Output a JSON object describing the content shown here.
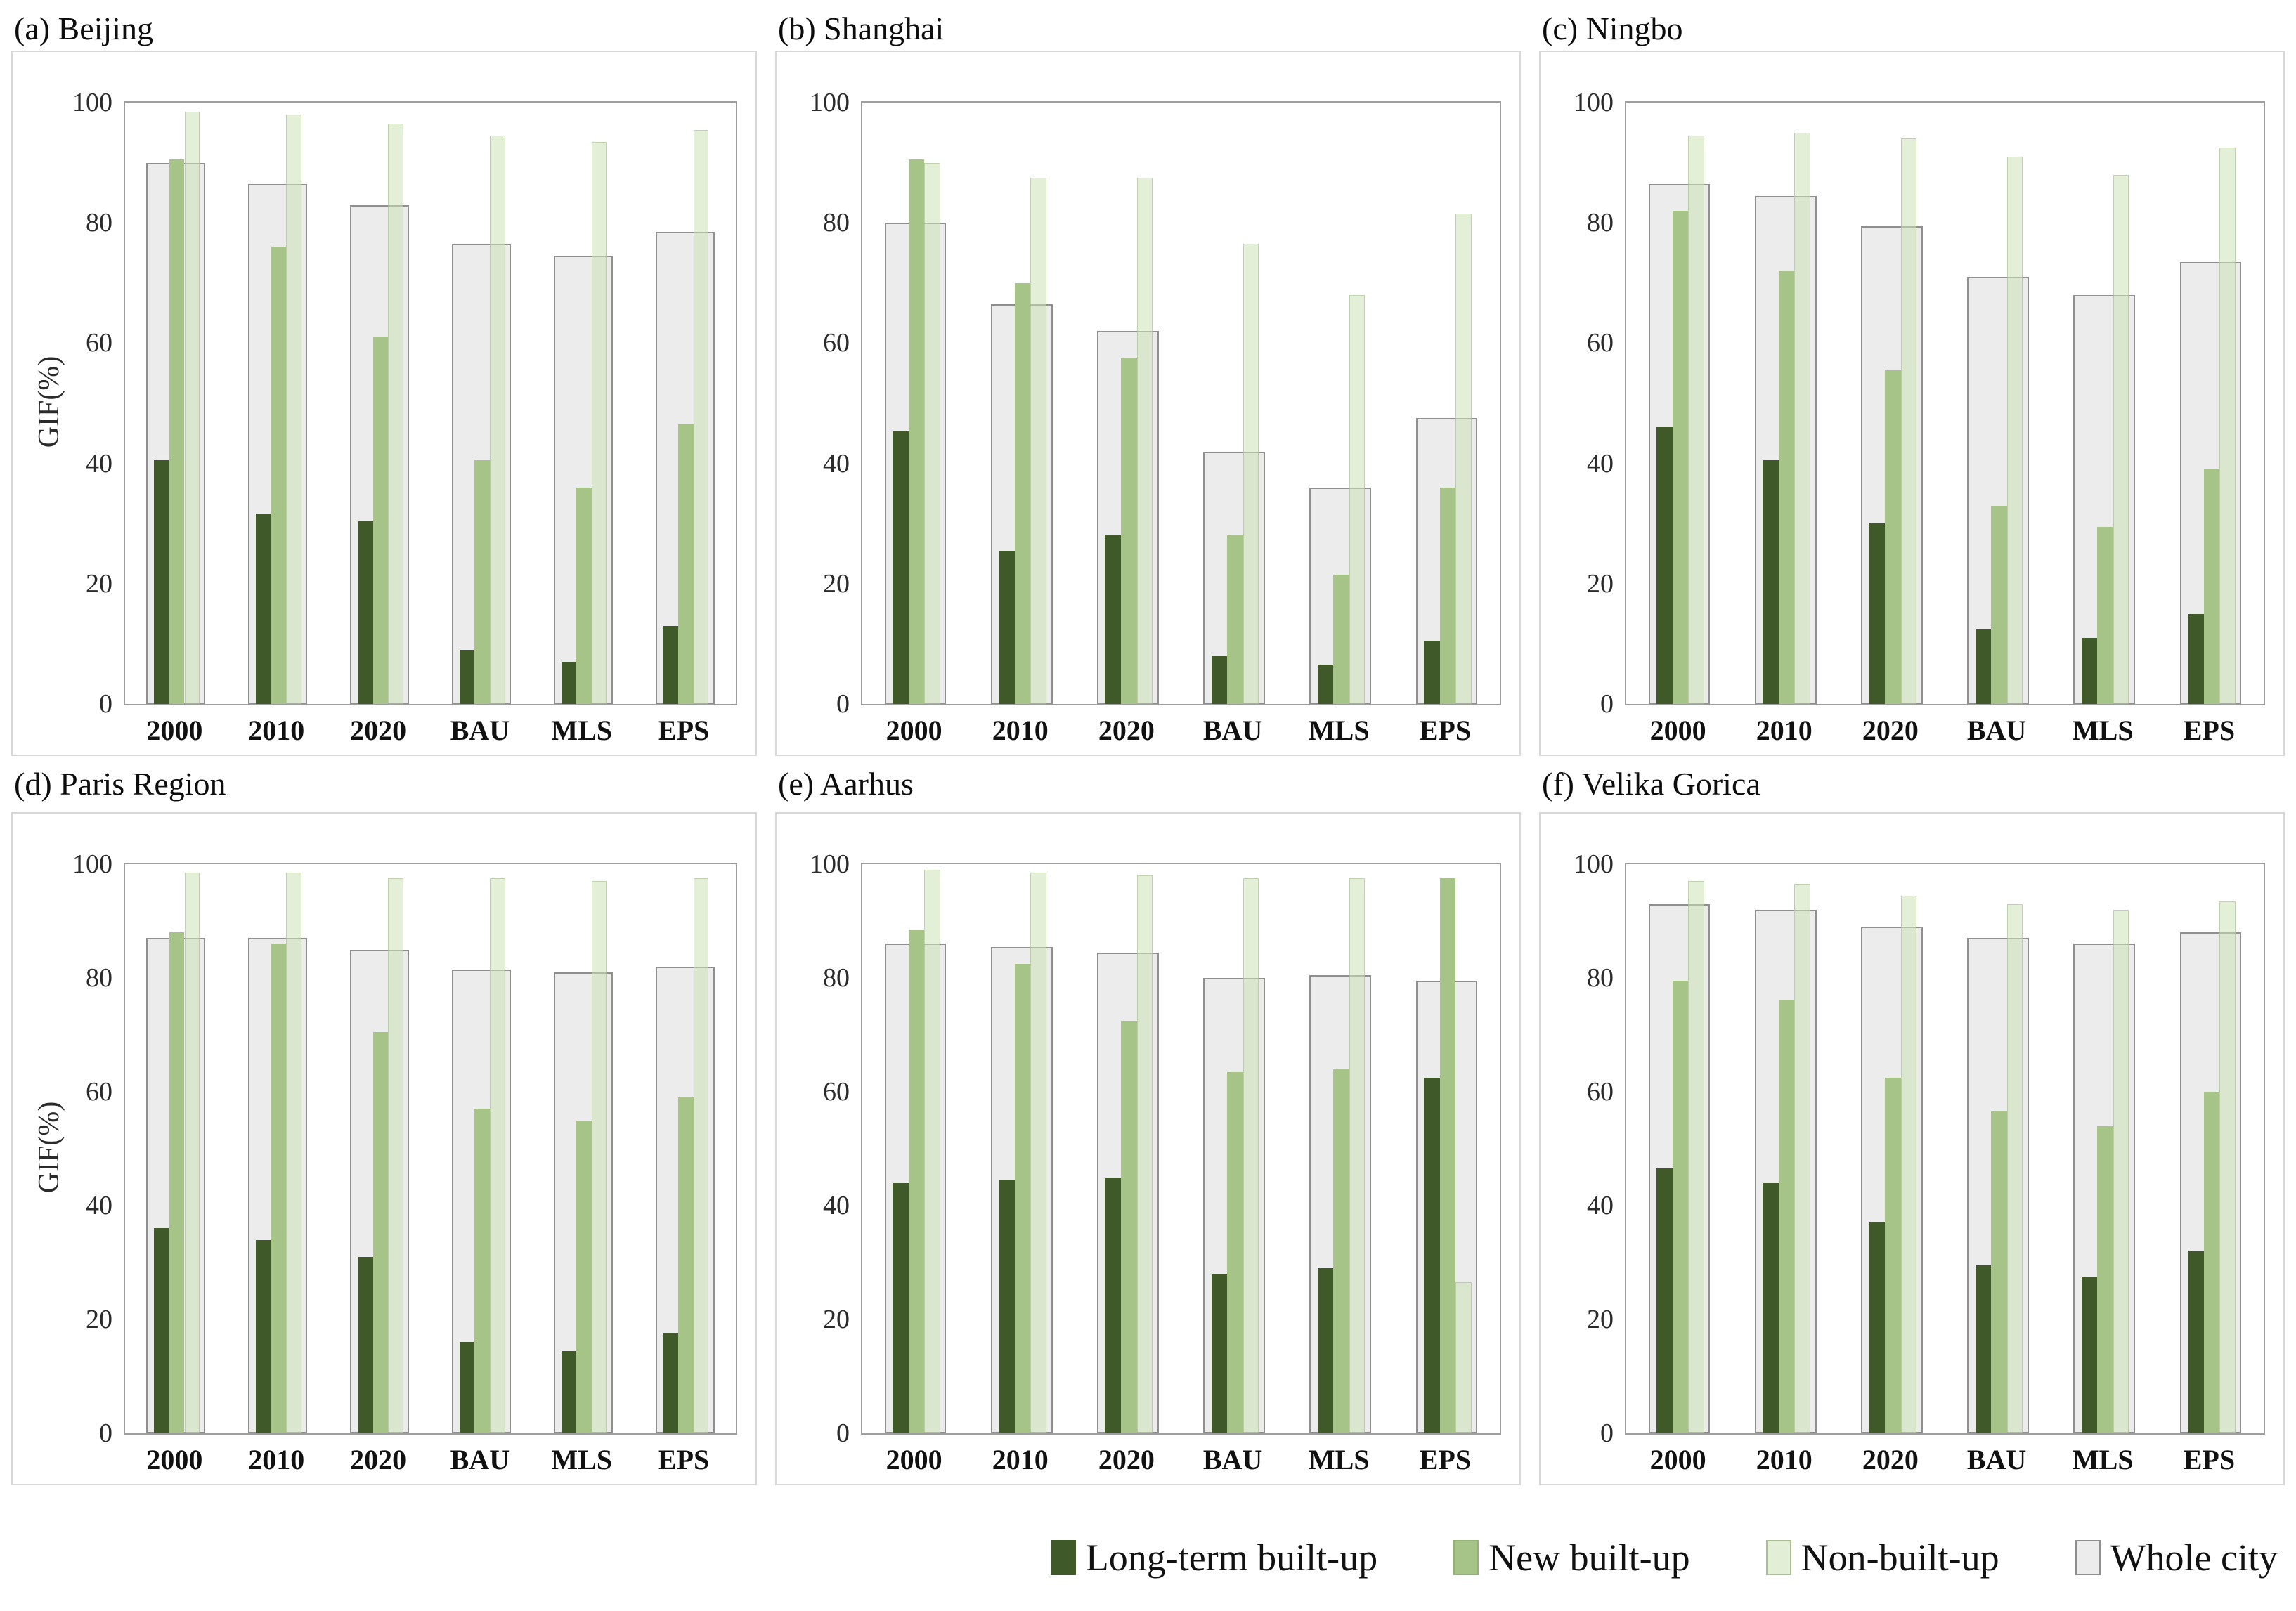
{
  "page": {
    "background": "#ffffff"
  },
  "colors": {
    "long_term": "#3f5a28",
    "new": "#a6c488",
    "new_border": "#93b476",
    "non_built_fill_rgba": "rgba(205,226,183,0.55)",
    "non_built_border_rgba": "rgba(150,170,125,0.45)",
    "non_built_swatch": "#e2eed6",
    "non_built_swatch_border": "#aabf93",
    "whole_fill": "#ececec",
    "whole_border": "#8f8f8f",
    "plot_frame": "#9e9e9e",
    "panel_border": "#d8d8d8",
    "text": "#111111"
  },
  "legend": {
    "items": [
      {
        "label": "Long-term built-up",
        "key": "long_term"
      },
      {
        "label": "New built-up",
        "key": "new"
      },
      {
        "label": "Non-built-up",
        "key": "non_built"
      },
      {
        "label": "Whole city",
        "key": "whole"
      }
    ]
  },
  "y_axis": {
    "title": "GIF(%)",
    "min": 0,
    "max": 100,
    "ticks": [
      0,
      20,
      40,
      60,
      80,
      100
    ]
  },
  "categories": [
    "2000",
    "2010",
    "2020",
    "BAU",
    "MLS",
    "EPS"
  ],
  "series_names": [
    "Long-term built-up",
    "New built-up",
    "Non-built-up",
    "Whole city"
  ],
  "chart_data": [
    {
      "id": "a",
      "type": "bar",
      "title": "(a) Beijing",
      "ylabel": "GIF(%)",
      "show_y_title": true,
      "ylim": [
        0,
        100
      ],
      "categories": [
        "2000",
        "2010",
        "2020",
        "BAU",
        "MLS",
        "EPS"
      ],
      "series": [
        {
          "name": "Long-term built-up",
          "key": "long_term",
          "values": [
            40.5,
            31.5,
            30.5,
            9,
            7,
            13
          ]
        },
        {
          "name": "New built-up",
          "key": "new",
          "values": [
            90.5,
            76,
            61,
            40.5,
            36,
            46.5
          ]
        },
        {
          "name": "Non-built-up",
          "key": "non_built",
          "values": [
            98.5,
            98,
            96.5,
            94.5,
            93.5,
            95.5
          ]
        },
        {
          "name": "Whole city",
          "key": "whole",
          "values": [
            90,
            86.5,
            83,
            76.5,
            74.5,
            78.5
          ]
        }
      ]
    },
    {
      "id": "b",
      "type": "bar",
      "title": "(b) Shanghai",
      "ylabel": "",
      "show_y_title": false,
      "ylim": [
        0,
        100
      ],
      "categories": [
        "2000",
        "2010",
        "2020",
        "BAU",
        "MLS",
        "EPS"
      ],
      "series": [
        {
          "name": "Long-term built-up",
          "key": "long_term",
          "values": [
            45.5,
            25.5,
            28,
            8,
            6.5,
            10.5
          ]
        },
        {
          "name": "New built-up",
          "key": "new",
          "values": [
            90.5,
            70,
            57.5,
            28,
            21.5,
            36
          ]
        },
        {
          "name": "Non-built-up",
          "key": "non_built",
          "values": [
            90,
            87.5,
            87.5,
            76.5,
            68,
            81.5
          ]
        },
        {
          "name": "Whole city",
          "key": "whole",
          "values": [
            80,
            66.5,
            62,
            42,
            36,
            47.5
          ]
        }
      ]
    },
    {
      "id": "c",
      "type": "bar",
      "title": "(c) Ningbo",
      "ylabel": "",
      "show_y_title": false,
      "ylim": [
        0,
        100
      ],
      "categories": [
        "2000",
        "2010",
        "2020",
        "BAU",
        "MLS",
        "EPS"
      ],
      "series": [
        {
          "name": "Long-term built-up",
          "key": "long_term",
          "values": [
            46,
            40.5,
            30,
            12.5,
            11,
            15
          ]
        },
        {
          "name": "New built-up",
          "key": "new",
          "values": [
            82,
            72,
            55.5,
            33,
            29.5,
            39
          ]
        },
        {
          "name": "Non-built-up",
          "key": "non_built",
          "values": [
            94.5,
            95,
            94,
            91,
            88,
            92.5
          ]
        },
        {
          "name": "Whole city",
          "key": "whole",
          "values": [
            86.5,
            84.5,
            79.5,
            71,
            68,
            73.5
          ]
        }
      ]
    },
    {
      "id": "d",
      "type": "bar",
      "title": "(d) Paris Region",
      "ylabel": "GIF(%)",
      "show_y_title": true,
      "ylim": [
        0,
        100
      ],
      "categories": [
        "2000",
        "2010",
        "2020",
        "BAU",
        "MLS",
        "EPS"
      ],
      "series": [
        {
          "name": "Long-term built-up",
          "key": "long_term",
          "values": [
            36,
            34,
            31,
            16,
            14.5,
            17.5
          ]
        },
        {
          "name": "New built-up",
          "key": "new",
          "values": [
            88,
            86,
            70.5,
            57,
            55,
            59
          ]
        },
        {
          "name": "Non-built-up",
          "key": "non_built",
          "values": [
            98.5,
            98.5,
            97.5,
            97.5,
            97,
            97.5
          ]
        },
        {
          "name": "Whole city",
          "key": "whole",
          "values": [
            87,
            87,
            85,
            81.5,
            81,
            82
          ]
        }
      ]
    },
    {
      "id": "e",
      "type": "bar",
      "title": "(e) Aarhus",
      "ylabel": "",
      "show_y_title": false,
      "ylim": [
        0,
        100
      ],
      "categories": [
        "2000",
        "2010",
        "2020",
        "BAU",
        "MLS",
        "EPS"
      ],
      "series": [
        {
          "name": "Long-term built-up",
          "key": "long_term",
          "values": [
            44,
            44.5,
            45,
            28,
            29,
            62.5
          ]
        },
        {
          "name": "New built-up",
          "key": "new",
          "values": [
            88.5,
            82.5,
            72.5,
            63.5,
            64,
            97.5
          ]
        },
        {
          "name": "Non-built-up",
          "key": "non_built",
          "values": [
            99,
            98.5,
            98,
            97.5,
            97.5,
            26.5
          ]
        },
        {
          "name": "Whole city",
          "key": "whole",
          "values": [
            86,
            85.5,
            84.5,
            80,
            80.5,
            79.5
          ]
        }
      ]
    },
    {
      "id": "f",
      "type": "bar",
      "title": "(f) Velika Gorica",
      "ylabel": "",
      "show_y_title": false,
      "ylim": [
        0,
        100
      ],
      "categories": [
        "2000",
        "2010",
        "2020",
        "BAU",
        "MLS",
        "EPS"
      ],
      "series": [
        {
          "name": "Long-term built-up",
          "key": "long_term",
          "values": [
            46.5,
            44,
            37,
            29.5,
            27.5,
            32
          ]
        },
        {
          "name": "New built-up",
          "key": "new",
          "values": [
            79.5,
            76,
            62.5,
            56.5,
            54,
            60
          ]
        },
        {
          "name": "Non-built-up",
          "key": "non_built",
          "values": [
            97,
            96.5,
            94.5,
            93,
            92,
            93.5
          ]
        },
        {
          "name": "Whole city",
          "key": "whole",
          "values": [
            93,
            92,
            89,
            87,
            86,
            88
          ]
        }
      ]
    }
  ]
}
